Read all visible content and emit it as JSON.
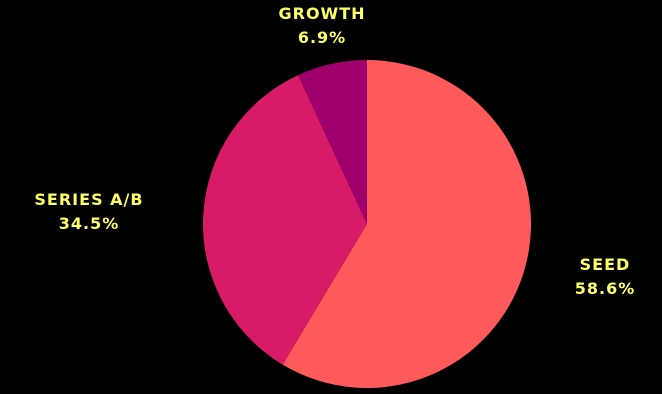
{
  "chart_data": {
    "type": "pie",
    "slices": [
      {
        "label": "SEED",
        "value": 58.6,
        "display": "58.6%",
        "color": "#FF5A5A"
      },
      {
        "label": "SERIES A/B",
        "value": 34.5,
        "display": "34.5%",
        "color": "#D81B66"
      },
      {
        "label": "GROWTH",
        "value": 6.9,
        "display": "6.9%",
        "color": "#A0006E"
      }
    ],
    "start": "12 o'clock",
    "direction": "clockwise",
    "label_color": "#FFFF66",
    "background": "#000000",
    "legend": "none"
  }
}
